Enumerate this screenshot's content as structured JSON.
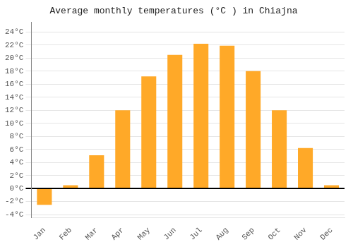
{
  "chart_data": {
    "type": "bar",
    "title": "Average monthly temperatures (°C ) in Chiajna",
    "categories": [
      "Jan",
      "Feb",
      "Mar",
      "Apr",
      "May",
      "Jun",
      "Jul",
      "Aug",
      "Sep",
      "Oct",
      "Nov",
      "Dec"
    ],
    "values": [
      -2.5,
      0.5,
      5.1,
      12.0,
      17.2,
      20.5,
      22.2,
      21.9,
      18.0,
      12.0,
      6.2,
      0.5
    ],
    "color": "#FFA928",
    "ylim": [
      -4.5,
      25.5
    ],
    "yticks": [
      {
        "value": -4,
        "label": "-4°C"
      },
      {
        "value": -2,
        "label": "-2°C"
      },
      {
        "value": 0,
        "label": "0°C"
      },
      {
        "value": 2,
        "label": "2°C"
      },
      {
        "value": 4,
        "label": "4°C"
      },
      {
        "value": 6,
        "label": "6°C"
      },
      {
        "value": 8,
        "label": "8°C"
      },
      {
        "value": 10,
        "label": "10°C"
      },
      {
        "value": 12,
        "label": "12°C"
      },
      {
        "value": 14,
        "label": "14°C"
      },
      {
        "value": 16,
        "label": "16°C"
      },
      {
        "value": 18,
        "label": "18°C"
      },
      {
        "value": 20,
        "label": "20°C"
      },
      {
        "value": 22,
        "label": "22°C"
      },
      {
        "value": 24,
        "label": "24°C"
      }
    ],
    "grid": true
  }
}
